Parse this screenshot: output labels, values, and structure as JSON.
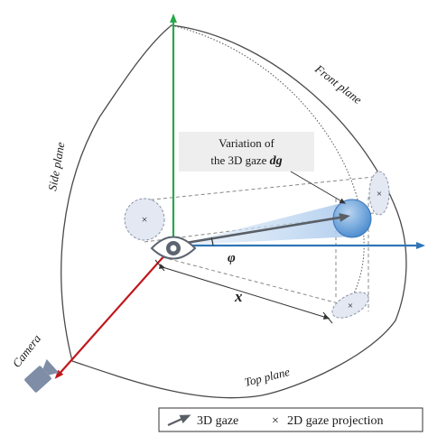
{
  "labels": {
    "front_plane": "Front plane",
    "side_plane": "Side plane",
    "top_plane": "Top plane",
    "camera": "Camera",
    "phi": "φ",
    "x": "x",
    "callout_line1": "Variation of",
    "callout_line2_prefix": "the 3D gaze ",
    "callout_symbol": "dg"
  },
  "legend": {
    "gaze_3d": "3D gaze",
    "cross_symbol": "×",
    "gaze_2d": "2D gaze projection"
  },
  "colors": {
    "vertical_axis": "#2aa84a",
    "horizontal_axis": "#2e75b6",
    "camera_axis": "#c0171b",
    "gaze_arrow": "#5a5f66",
    "gaze_sphere": "#5b9bd5",
    "projection_ellipse": "#cfd6e6",
    "camera_icon": "#7f8da6",
    "outline": "#4a4a4a"
  },
  "icons": {
    "eye": "eye-icon",
    "camera": "camera-icon",
    "cross": "cross-icon"
  }
}
